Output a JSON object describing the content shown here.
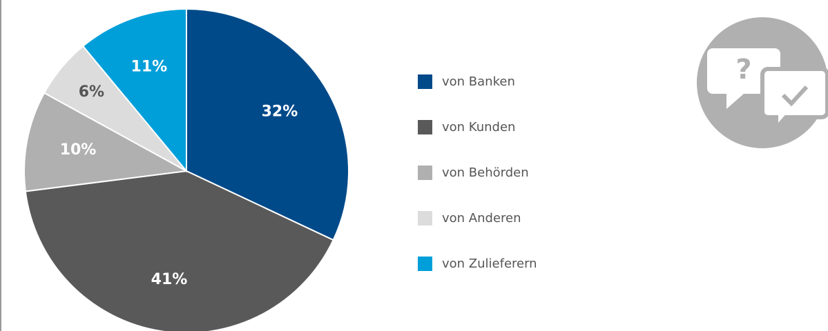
{
  "chart_data": {
    "type": "pie",
    "categories": [
      "von Banken",
      "von Kunden",
      "von Behörden",
      "von Anderen",
      "von Zulieferern"
    ],
    "values": [
      32,
      41,
      10,
      6,
      11
    ],
    "value_labels": [
      "32%",
      "41%",
      "10%",
      "6%",
      "11%"
    ],
    "colors": [
      "#004a8a",
      "#595959",
      "#b0b0b0",
      "#dcdcdc",
      "#009fda"
    ],
    "legend": "right"
  }
}
